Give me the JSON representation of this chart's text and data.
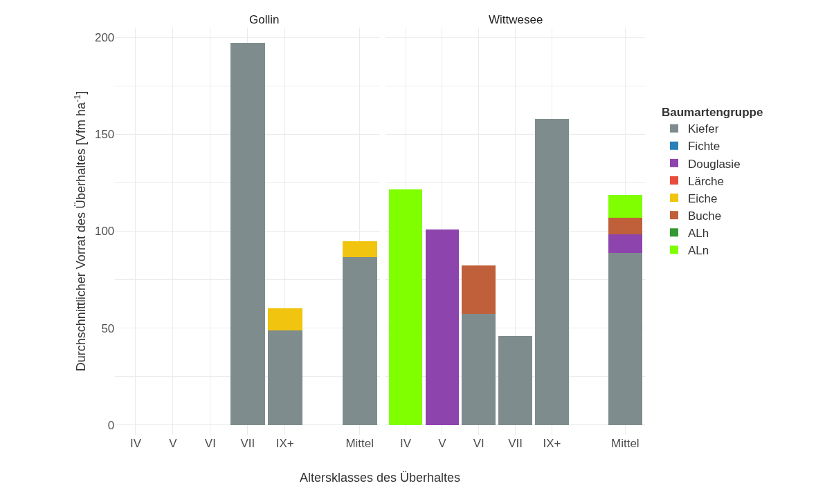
{
  "chart_data": [
    {
      "type": "bar",
      "title": "Gollin",
      "xlabel": "Altersklasses des Überhaltes",
      "ylabel": "Durchschnittlicher Vorrat des Überhaltes [Vfm ha$^{-1}$]",
      "categories": [
        "IV",
        "V",
        "VI",
        "VII",
        "IX+",
        null,
        "Mittel"
      ],
      "stacked": true,
      "grid": true,
      "ylim": [
        -5,
        205
      ],
      "yticks": [
        0,
        {
          "value": 25,
          "label": null
        },
        50,
        {
          "value": 75,
          "label": null
        },
        100,
        {
          "value": 125,
          "label": null
        },
        150,
        {
          "value": 175,
          "label": null
        },
        200
      ],
      "series": [
        {
          "color": "#7f8c8d",
          "values": [
            null,
            null,
            null,
            197,
            48.8,
            null,
            86.6
          ]
        },
        {
          "color": "#2980b9",
          "values": [
            null,
            null,
            null,
            null,
            null,
            null,
            null
          ]
        },
        {
          "color": "#8e44ad",
          "values": [
            null,
            null,
            null,
            null,
            null,
            null,
            null
          ]
        },
        {
          "color": "#e74c3c",
          "values": [
            null,
            null,
            null,
            null,
            null,
            null,
            null
          ]
        },
        {
          "color": "#f1c40f",
          "values": [
            null,
            null,
            null,
            null,
            11.4,
            null,
            8.4
          ]
        },
        {
          "color": "#c0603a",
          "values": [
            null,
            null,
            null,
            null,
            null,
            null,
            null
          ]
        },
        {
          "color": "#339933",
          "values": [
            null,
            null,
            null,
            null,
            null,
            null,
            null
          ]
        },
        {
          "color": "#7fff00",
          "values": [
            null,
            null,
            null,
            null,
            null,
            null,
            null
          ]
        }
      ]
    },
    {
      "type": "bar",
      "title": "Wittwesee",
      "legend_title": "Baumartengruppe",
      "categories": [
        "IV",
        "V",
        "VI",
        "VII",
        "IX+",
        null,
        "Mittel"
      ],
      "stacked": true,
      "grid": true,
      "legend": "right",
      "tick_labels": "x",
      "ylim": [
        -5,
        205
      ],
      "yticks": [
        0,
        {
          "value": 25,
          "label": null
        },
        50,
        {
          "value": 75,
          "label": null
        },
        100,
        {
          "value": 125,
          "label": null
        },
        150,
        {
          "value": 175,
          "label": null
        },
        200
      ],
      "series": [
        {
          "name": "Kiefer",
          "color": "#7f8c8d",
          "values": [
            null,
            null,
            57.5,
            46.1,
            158,
            null,
            88.6
          ]
        },
        {
          "name": "Fichte",
          "color": "#2980b9",
          "values": [
            null,
            null,
            null,
            null,
            null,
            null,
            null
          ]
        },
        {
          "name": "Douglasie",
          "color": "#8e44ad",
          "values": [
            null,
            100.8,
            null,
            null,
            null,
            null,
            9.8
          ]
        },
        {
          "name": "Lärche",
          "color": "#e74c3c",
          "values": [
            null,
            null,
            null,
            null,
            null,
            null,
            null
          ]
        },
        {
          "name": "Eiche",
          "color": "#f1c40f",
          "values": [
            null,
            null,
            null,
            null,
            null,
            null,
            null
          ]
        },
        {
          "name": "Buche",
          "color": "#c0603a",
          "values": [
            null,
            null,
            24.9,
            null,
            null,
            null,
            8.4
          ]
        },
        {
          "name": "ALh",
          "color": "#339933",
          "values": [
            null,
            null,
            null,
            null,
            null,
            null,
            null
          ]
        },
        {
          "name": "ALn",
          "color": "#7fff00",
          "values": [
            121.5,
            null,
            null,
            null,
            null,
            null,
            12.0
          ]
        }
      ]
    }
  ]
}
